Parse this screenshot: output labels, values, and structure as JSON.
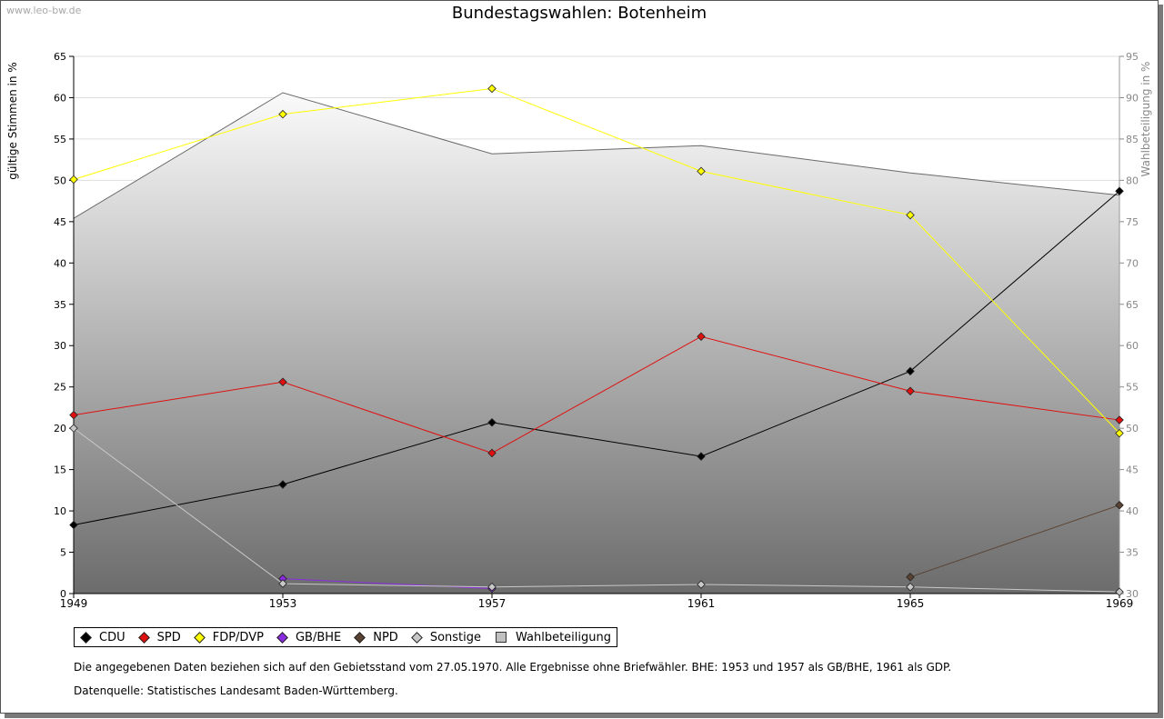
{
  "watermark": "www.leo-bw.de",
  "chart_data": {
    "type": "line",
    "title": "Bundestagswahlen: Botenheim",
    "ylabel": "gültige Stimmen in %",
    "y2label": "Wahlbeteiligung in %",
    "x": [
      "1949",
      "1953",
      "1957",
      "1961",
      "1965",
      "1969"
    ],
    "ylim": [
      0,
      65
    ],
    "y2lim": [
      30,
      95
    ],
    "yticks": [
      "0",
      "5",
      "10",
      "15",
      "20",
      "25",
      "30",
      "35",
      "40",
      "45",
      "50",
      "55",
      "60",
      "65"
    ],
    "y2ticks": [
      "30",
      "35",
      "40",
      "45",
      "50",
      "55",
      "60",
      "65",
      "70",
      "75",
      "80",
      "85",
      "90",
      "95"
    ],
    "grid": true,
    "legend_position": "bottom",
    "series": [
      {
        "name": "CDU",
        "color": "#000000",
        "values": [
          8.3,
          13.2,
          20.7,
          16.6,
          26.9,
          48.7
        ]
      },
      {
        "name": "SPD",
        "color": "#e01010",
        "values": [
          21.6,
          25.6,
          17.0,
          31.1,
          24.5,
          21.0
        ]
      },
      {
        "name": "FDP/DVP",
        "color": "#ffff00",
        "values": [
          50.1,
          58.0,
          61.1,
          51.1,
          45.8,
          19.4
        ]
      },
      {
        "name": "GB/BHE",
        "color": "#8a2be2",
        "values": [
          null,
          1.8,
          0.6,
          null,
          null,
          null
        ]
      },
      {
        "name": "NPD",
        "color": "#5a4232",
        "values": [
          null,
          null,
          null,
          null,
          2.0,
          10.7
        ]
      },
      {
        "name": "Sonstige",
        "color": "#c8c8c8",
        "values": [
          20.0,
          1.2,
          0.8,
          1.1,
          0.8,
          0.2
        ]
      }
    ],
    "turnout": {
      "name": "Wahlbeteiligung",
      "color": "#c0c0c0",
      "axis": "right",
      "values": [
        75.4,
        90.6,
        83.2,
        84.2,
        80.9,
        78.2
      ]
    }
  },
  "notes": {
    "line1": "Die angegebenen Daten beziehen sich auf den Gebietsstand vom 27.05.1970. Alle Ergebnisse ohne Briefwähler. BHE: 1953 und 1957 als GB/BHE, 1961 als GDP.",
    "line2": "Datenquelle: Statistisches Landesamt Baden-Württemberg."
  }
}
